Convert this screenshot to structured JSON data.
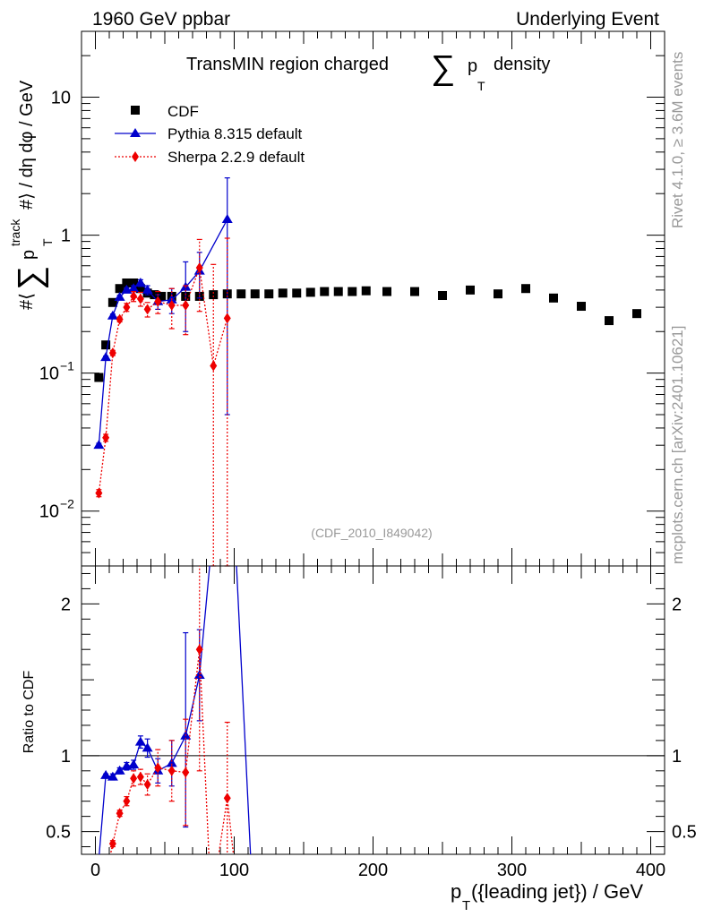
{
  "header": {
    "left": "1960 GeV ppbar",
    "right": "Underlying Event"
  },
  "side_labels": {
    "rivet": "Rivet 4.1.0, ≥ 3.6M events",
    "mcplots": "mcplots.cern.ch [arXiv:2401.10621]"
  },
  "watermark": "(CDF_2010_I849042)",
  "chart_data": [
    {
      "type": "scatter",
      "scale": "log",
      "title_parts": {
        "pre": "TransMIN region charged",
        "sum": "∑",
        "p": "p",
        "sub": "T",
        "post": "density"
      },
      "ylabel_parts": {
        "hash1": "#⟨",
        "sum": "∑",
        "p": "p",
        "sup": "track",
        "sub": "T",
        "post": "#⟩ / dη dφ / GeV"
      },
      "xlim": [
        -10,
        410
      ],
      "ylim": [
        0.004,
        30
      ],
      "ytick_labels": [
        {
          "value": 0.01,
          "base": "10",
          "exp": "−2"
        },
        {
          "value": 0.1,
          "base": "10",
          "exp": "−1"
        },
        {
          "value": 1,
          "base": "1",
          "exp": ""
        },
        {
          "value": 10,
          "base": "10",
          "exp": ""
        }
      ],
      "legend_position": "top-left",
      "series": [
        {
          "name": "CDF",
          "color": "#000000",
          "marker": "square",
          "line": "none",
          "x": [
            2.5,
            7.5,
            12.5,
            17.5,
            22.5,
            27.5,
            32.5,
            37.5,
            42.5,
            47.5,
            55,
            65,
            75,
            85,
            95,
            105,
            115,
            125,
            135,
            145,
            155,
            165,
            175,
            185,
            195,
            210,
            230,
            250,
            270,
            290,
            310,
            330,
            350,
            370,
            390
          ],
          "y": [
            0.093,
            0.16,
            0.325,
            0.41,
            0.45,
            0.45,
            0.41,
            0.38,
            0.37,
            0.36,
            0.36,
            0.36,
            0.36,
            0.37,
            0.375,
            0.375,
            0.375,
            0.375,
            0.38,
            0.38,
            0.385,
            0.39,
            0.39,
            0.39,
            0.395,
            0.39,
            0.39,
            0.365,
            0.4,
            0.375,
            0.41,
            0.35,
            0.305,
            0.24,
            0.27
          ]
        },
        {
          "name": "Pythia 8.315 default",
          "color": "#0000cc",
          "marker": "triangle",
          "line": "solid",
          "x": [
            2.5,
            7.5,
            12.5,
            17.5,
            22.5,
            27.5,
            32.5,
            37.5,
            45,
            55,
            65,
            75,
            95
          ],
          "y": [
            0.03,
            0.13,
            0.26,
            0.355,
            0.4,
            0.41,
            0.45,
            0.4,
            0.33,
            0.34,
            0.42,
            0.55,
            1.3
          ],
          "err_low": [
            0.001,
            0.003,
            0.008,
            0.012,
            0.016,
            0.02,
            0.025,
            0.03,
            0.04,
            0.07,
            0.22,
            0.2,
            1.25
          ],
          "err_high": [
            0.001,
            0.003,
            0.008,
            0.012,
            0.016,
            0.02,
            0.025,
            0.03,
            0.04,
            0.07,
            0.22,
            0.2,
            1.3
          ]
        },
        {
          "name": "Sherpa 2.2.9 default",
          "color": "#ee0000",
          "marker": "diamond",
          "line": "dotted",
          "x": [
            2.5,
            7.5,
            12.5,
            17.5,
            22.5,
            27.5,
            32.5,
            37.5,
            45,
            55,
            65,
            75,
            85,
            95
          ],
          "y": [
            0.0135,
            0.034,
            0.14,
            0.245,
            0.3,
            0.36,
            0.345,
            0.29,
            0.33,
            0.31,
            0.31,
            0.58,
            0.113,
            0.25
          ],
          "err_low": [
            0.0008,
            0.002,
            0.006,
            0.01,
            0.02,
            0.03,
            0.04,
            0.035,
            0.06,
            0.1,
            0.12,
            0.3,
            0.11,
            0.248
          ],
          "err_high": [
            0.0008,
            0.002,
            0.006,
            0.01,
            0.02,
            0.03,
            0.04,
            0.035,
            0.06,
            0.1,
            0.12,
            0.35,
            0.5,
            0.7
          ]
        }
      ]
    },
    {
      "type": "line",
      "scale": "linear",
      "ylabel": "Ratio to CDF",
      "xlabel_parts": {
        "p": "p",
        "sub": "T",
        "post": "({leading jet}) / GeV"
      },
      "xlim": [
        -10,
        410
      ],
      "ylim": [
        0.35,
        2.25
      ],
      "xticks": [
        0,
        100,
        200,
        300,
        400
      ],
      "yticks": [
        0.5,
        1,
        2
      ],
      "reference_line": 1,
      "series": [
        {
          "name": "Pythia 8.315 default",
          "color": "#0000cc",
          "marker": "triangle",
          "line": "solid",
          "x": [
            2.5,
            7.5,
            12.5,
            17.5,
            22.5,
            27.5,
            32.5,
            37.5,
            45,
            55,
            65,
            75,
            95,
            112
          ],
          "y": [
            0.32,
            0.87,
            0.86,
            0.9,
            0.93,
            0.94,
            1.09,
            1.05,
            0.9,
            0.95,
            1.13,
            1.53,
            3.5,
            0.3
          ],
          "marker_mask": [
            false,
            true,
            true,
            true,
            true,
            true,
            true,
            true,
            true,
            true,
            true,
            true,
            false,
            false
          ],
          "err_low": [
            0,
            0.01,
            0.02,
            0.02,
            0.025,
            0.03,
            0.04,
            0.06,
            0.08,
            0.15,
            0.6,
            0.3,
            0,
            0
          ],
          "err_high": [
            0,
            0.01,
            0.02,
            0.02,
            0.025,
            0.03,
            0.04,
            0.06,
            0.08,
            0.15,
            0.68,
            0.3,
            0,
            0
          ]
        },
        {
          "name": "Sherpa 2.2.9 default",
          "color": "#ee0000",
          "marker": "diamond",
          "line": "dotted",
          "x": [
            7.5,
            12.5,
            17.5,
            22.5,
            27.5,
            32.5,
            37.5,
            45,
            55,
            65,
            75,
            82,
            88,
            95,
            100
          ],
          "y": [
            0.2,
            0.42,
            0.62,
            0.7,
            0.85,
            0.86,
            0.81,
            0.92,
            0.9,
            0.89,
            1.7,
            0.3,
            0.3,
            0.72,
            0.3
          ],
          "marker_mask": [
            false,
            true,
            true,
            true,
            true,
            true,
            true,
            true,
            true,
            true,
            true,
            false,
            false,
            true,
            false
          ],
          "err_low": [
            0,
            0.02,
            0.02,
            0.03,
            0.05,
            0.05,
            0.07,
            0.12,
            0.2,
            0.35,
            0.8,
            0,
            0,
            0.5,
            0
          ],
          "err_high": [
            0,
            0.02,
            0.02,
            0.03,
            0.05,
            0.05,
            0.07,
            0.12,
            0.2,
            0.35,
            0.6,
            0,
            0,
            0.5,
            0
          ]
        }
      ]
    }
  ]
}
